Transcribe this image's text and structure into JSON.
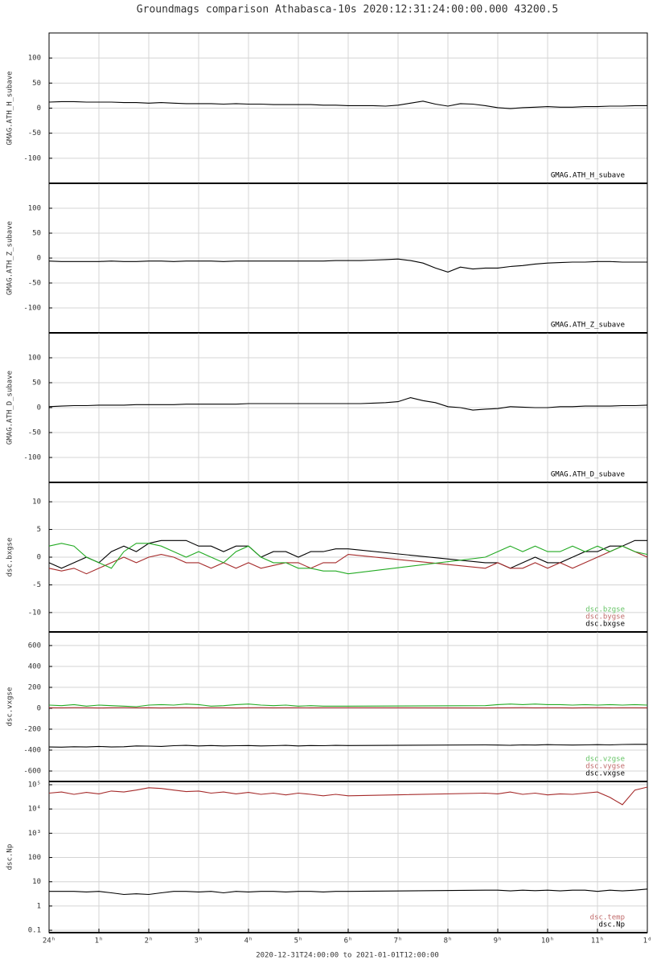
{
  "chart_data": [
    {
      "type": "line",
      "title": "Groundmags comparison Athabasca-10s 2020:12:31:24:00:00.000 43200.5",
      "ylabel": "GMAG.ATH_H_subave",
      "xlim": [
        0,
        12
      ],
      "ylim": [
        -150,
        150
      ],
      "yticks": [
        100,
        50,
        0,
        -50,
        -100
      ],
      "grid": true,
      "x": [
        0,
        0.25,
        0.5,
        0.75,
        1,
        1.25,
        1.5,
        1.75,
        2,
        2.25,
        2.5,
        2.75,
        3,
        3.25,
        3.5,
        3.75,
        4,
        4.25,
        4.5,
        4.75,
        5,
        5.25,
        5.5,
        5.75,
        6,
        6.25,
        6.5,
        6.75,
        7,
        7.25,
        7.5,
        7.75,
        8,
        8.25,
        8.5,
        8.75,
        9,
        9.25,
        9.5,
        9.75,
        10,
        10.25,
        10.5,
        10.75,
        11,
        11.25,
        11.5,
        11.75,
        12
      ],
      "series": [
        {
          "name": "GMAG.ATH_H_subave",
          "color": "#000000",
          "values": [
            12,
            13,
            13,
            12,
            12,
            12,
            11,
            11,
            10,
            11,
            10,
            9,
            9,
            9,
            8,
            9,
            8,
            8,
            7,
            7,
            7,
            7,
            6,
            6,
            5,
            5,
            5,
            4,
            6,
            10,
            14,
            8,
            4,
            9,
            8,
            5,
            1,
            -1,
            1,
            2,
            3,
            2,
            2,
            3,
            3,
            4,
            4,
            5,
            5
          ]
        }
      ]
    },
    {
      "type": "line",
      "ylabel": "GMAG.ATH_Z_subave",
      "xlim": [
        0,
        12
      ],
      "ylim": [
        -150,
        150
      ],
      "yticks": [
        100,
        50,
        0,
        -50,
        -100
      ],
      "grid": true,
      "x": [
        0,
        0.25,
        0.5,
        0.75,
        1,
        1.25,
        1.5,
        1.75,
        2,
        2.25,
        2.5,
        2.75,
        3,
        3.25,
        3.5,
        3.75,
        4,
        4.25,
        4.5,
        4.75,
        5,
        5.25,
        5.5,
        5.75,
        6,
        6.25,
        6.5,
        6.75,
        7,
        7.25,
        7.5,
        7.75,
        8,
        8.25,
        8.5,
        8.75,
        9,
        9.25,
        9.5,
        9.75,
        10,
        10.25,
        10.5,
        10.75,
        11,
        11.25,
        11.5,
        11.75,
        12
      ],
      "series": [
        {
          "name": "GMAG.ATH_Z_subave",
          "color": "#000000",
          "values": [
            -6,
            -7,
            -7,
            -7,
            -7,
            -6,
            -7,
            -7,
            -6,
            -6,
            -7,
            -6,
            -6,
            -6,
            -7,
            -6,
            -6,
            -6,
            -6,
            -6,
            -6,
            -6,
            -6,
            -5,
            -5,
            -5,
            -4,
            -3,
            -2,
            -5,
            -10,
            -20,
            -28,
            -18,
            -22,
            -20,
            -20,
            -17,
            -15,
            -12,
            -10,
            -9,
            -8,
            -8,
            -7,
            -7,
            -8,
            -8,
            -8
          ]
        }
      ]
    },
    {
      "type": "line",
      "ylabel": "GMAG.ATH_D_subave",
      "xlim": [
        0,
        12
      ],
      "ylim": [
        -150,
        150
      ],
      "yticks": [
        100,
        50,
        0,
        -50,
        -100
      ],
      "grid": true,
      "x": [
        0,
        0.25,
        0.5,
        0.75,
        1,
        1.25,
        1.5,
        1.75,
        2,
        2.25,
        2.5,
        2.75,
        3,
        3.25,
        3.5,
        3.75,
        4,
        4.25,
        4.5,
        4.75,
        5,
        5.25,
        5.5,
        5.75,
        6,
        6.25,
        6.5,
        6.75,
        7,
        7.25,
        7.5,
        7.75,
        8,
        8.25,
        8.5,
        8.75,
        9,
        9.25,
        9.5,
        9.75,
        10,
        10.25,
        10.5,
        10.75,
        11,
        11.25,
        11.5,
        11.75,
        12
      ],
      "series": [
        {
          "name": "GMAG.ATH_D_subave",
          "color": "#000000",
          "values": [
            2,
            3,
            4,
            4,
            5,
            5,
            5,
            6,
            6,
            6,
            6,
            7,
            7,
            7,
            7,
            7,
            8,
            8,
            8,
            8,
            8,
            8,
            8,
            8,
            8,
            8,
            9,
            10,
            12,
            20,
            14,
            10,
            2,
            0,
            -5,
            -3,
            -2,
            2,
            1,
            0,
            0,
            2,
            2,
            3,
            3,
            3,
            4,
            4,
            5
          ]
        }
      ]
    },
    {
      "type": "line",
      "ylabel": "dsc.bxgse",
      "xlim": [
        0,
        12
      ],
      "ylim": [
        -13.5,
        13.5
      ],
      "yticks": [
        10,
        5,
        0,
        -5,
        -10
      ],
      "grid": true,
      "x": [
        0,
        0.25,
        0.5,
        0.75,
        1,
        1.25,
        1.5,
        1.75,
        2,
        2.25,
        2.5,
        2.75,
        3,
        3.25,
        3.5,
        3.75,
        4,
        4.25,
        4.5,
        4.75,
        5,
        5.25,
        5.5,
        5.75,
        6,
        8.75,
        9,
        9.25,
        9.5,
        9.75,
        10,
        10.25,
        10.5,
        10.75,
        11,
        11.25,
        11.5,
        11.75,
        12
      ],
      "series": [
        {
          "name": "dsc.bxgse",
          "color": "#000000",
          "values": [
            -1,
            -2,
            -1,
            0,
            -1,
            1,
            2,
            1,
            2.5,
            3,
            3,
            3,
            2,
            2,
            1,
            2,
            2,
            0,
            1,
            1,
            0,
            1,
            1,
            1.5,
            1.5,
            -1,
            -1,
            -2,
            -1,
            0,
            -1,
            -1,
            0,
            1,
            1,
            2,
            2,
            3,
            3
          ]
        },
        {
          "name": "dsc.bygse",
          "color": "#a52a2a",
          "values": [
            -2,
            -2.5,
            -2,
            -3,
            -2,
            -1,
            0,
            -1,
            0,
            0.5,
            0,
            -1,
            -1,
            -2,
            -1,
            -2,
            -1,
            -2,
            -1.5,
            -1,
            -1,
            -2,
            -1,
            -1,
            0.5,
            -2,
            -1,
            -2,
            -2,
            -1,
            -2,
            -1,
            -2,
            -1,
            0,
            1,
            2,
            1,
            0
          ]
        },
        {
          "name": "dsc.bzgse",
          "color": "#22aa22",
          "values": [
            2,
            2.5,
            2,
            0,
            -1,
            -2,
            1,
            2.5,
            2.5,
            2,
            1,
            0,
            1,
            0,
            -1,
            1,
            2,
            0,
            -1,
            -1,
            -2,
            -2,
            -2.5,
            -2.5,
            -3,
            0,
            1,
            2,
            1,
            2,
            1,
            1,
            2,
            1,
            2,
            1,
            2,
            1,
            0.5
          ]
        }
      ]
    },
    {
      "type": "line",
      "ylabel": "dsc.vxgse",
      "xlim": [
        0,
        12
      ],
      "ylim": [
        -700,
        730
      ],
      "yticks": [
        600,
        400,
        200,
        0,
        -200,
        -400,
        -600
      ],
      "grid": true,
      "x": [
        0,
        0.25,
        0.5,
        0.75,
        1,
        1.25,
        1.5,
        1.75,
        2,
        2.25,
        2.5,
        2.75,
        3,
        3.25,
        3.5,
        3.75,
        4,
        4.25,
        4.5,
        4.75,
        5,
        5.25,
        5.5,
        5.75,
        6,
        8.75,
        9,
        9.25,
        9.5,
        9.75,
        10,
        10.25,
        10.5,
        10.75,
        11,
        11.25,
        11.5,
        11.75,
        12
      ],
      "series": [
        {
          "name": "dsc.vxgse",
          "color": "#000000",
          "values": [
            -370,
            -372,
            -368,
            -370,
            -365,
            -370,
            -368,
            -360,
            -362,
            -365,
            -358,
            -355,
            -360,
            -356,
            -360,
            -358,
            -356,
            -360,
            -358,
            -355,
            -360,
            -356,
            -358,
            -355,
            -356,
            -350,
            -352,
            -354,
            -350,
            -352,
            -348,
            -350,
            -352,
            -350,
            -348,
            -350,
            -346,
            -345,
            -345
          ]
        },
        {
          "name": "dsc.vygse",
          "color": "#a52a2a",
          "values": [
            5,
            4,
            6,
            5,
            3,
            5,
            6,
            4,
            5,
            3,
            5,
            6,
            4,
            5,
            5,
            3,
            5,
            6,
            4,
            5,
            5,
            4,
            5,
            5,
            5,
            3,
            4,
            5,
            6,
            4,
            5,
            5,
            3,
            5,
            6,
            4,
            5,
            5,
            4
          ]
        },
        {
          "name": "dsc.vzgse",
          "color": "#22aa22",
          "values": [
            30,
            25,
            35,
            20,
            30,
            25,
            20,
            15,
            30,
            35,
            30,
            40,
            35,
            20,
            25,
            35,
            40,
            30,
            25,
            30,
            20,
            25,
            20,
            20,
            20,
            25,
            35,
            40,
            35,
            40,
            35,
            35,
            30,
            35,
            30,
            35,
            30,
            35,
            30
          ]
        }
      ]
    },
    {
      "type": "line",
      "ylabel": "dsc.Np",
      "ylog": true,
      "xlabel": "2020-12-31T24:00:00 to 2021-01-01T12:00:00",
      "xlim": [
        0,
        12
      ],
      "ylim": [
        0.08,
        136000
      ],
      "yticks": [
        {
          "value": 100000,
          "label": "10⁵"
        },
        {
          "value": 10000,
          "label": "10⁴"
        },
        {
          "value": 1000,
          "label": "10³"
        },
        100,
        10,
        1,
        0.1
      ],
      "xticks": [
        {
          "value": 0,
          "label": "24ʰ"
        },
        {
          "value": 1,
          "label": "1ʰ"
        },
        {
          "value": 2,
          "label": "2ʰ"
        },
        {
          "value": 3,
          "label": "3ʰ"
        },
        {
          "value": 4,
          "label": "4ʰ"
        },
        {
          "value": 5,
          "label": "5ʰ"
        },
        {
          "value": 6,
          "label": "6ʰ"
        },
        {
          "value": 7,
          "label": "7ʰ"
        },
        {
          "value": 8,
          "label": "8ʰ"
        },
        {
          "value": 9,
          "label": "9ʰ"
        },
        {
          "value": 10,
          "label": "10ʰ"
        },
        {
          "value": 11,
          "label": "11ʰ"
        },
        {
          "value": 12,
          "label": "1ᵈ"
        }
      ],
      "grid": true,
      "x": [
        0,
        0.25,
        0.5,
        0.75,
        1,
        1.25,
        1.5,
        1.75,
        2,
        2.25,
        2.5,
        2.75,
        3,
        3.25,
        3.5,
        3.75,
        4,
        4.25,
        4.5,
        4.75,
        5,
        5.25,
        5.5,
        5.75,
        6,
        8.75,
        9,
        9.25,
        9.5,
        9.75,
        10,
        10.25,
        10.5,
        10.75,
        11,
        11.25,
        11.5,
        11.75,
        12
      ],
      "series": [
        {
          "name": "dsc.Np",
          "color": "#000000",
          "values": [
            4,
            4,
            4,
            3.8,
            4,
            3.5,
            3,
            3.2,
            3,
            3.5,
            4,
            4,
            3.8,
            4,
            3.5,
            4,
            3.8,
            4,
            4,
            3.8,
            4,
            4,
            3.8,
            4,
            4,
            4.5,
            4.5,
            4.2,
            4.5,
            4.3,
            4.5,
            4.2,
            4.5,
            4.5,
            4,
            4.5,
            4.2,
            4.5,
            5
          ]
        },
        {
          "name": "dsc.temp",
          "color": "#a52a2a",
          "values": [
            45000,
            50000,
            40000,
            48000,
            42000,
            55000,
            50000,
            60000,
            75000,
            70000,
            60000,
            52000,
            55000,
            45000,
            50000,
            42000,
            48000,
            40000,
            45000,
            38000,
            45000,
            40000,
            35000,
            40000,
            35000,
            45000,
            42000,
            50000,
            40000,
            45000,
            38000,
            42000,
            40000,
            45000,
            50000,
            30000,
            15000,
            60000,
            80000
          ]
        }
      ]
    }
  ]
}
